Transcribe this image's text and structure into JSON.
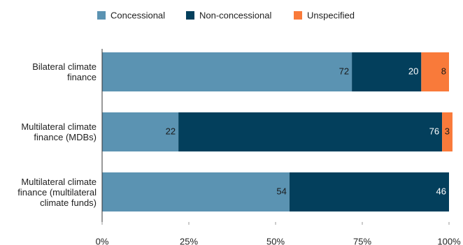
{
  "chart_data": {
    "type": "stacked-bar-horizontal",
    "categories": [
      "Bilateral climate finance",
      "Multilateral climate finance (MDBs)",
      "Multilateral climate finance (multilateral climate funds)"
    ],
    "series": [
      {
        "name": "Concessional",
        "color": "#5b93b2",
        "label_color": "#1a1a1a",
        "values": [
          72,
          22,
          54
        ]
      },
      {
        "name": "Non-concessional",
        "color": "#033f5c",
        "label_color": "#ffffff",
        "values": [
          20,
          76,
          46
        ]
      },
      {
        "name": "Unspecified",
        "color": "#f97a3a",
        "label_color": "#1a1a1a",
        "values": [
          8,
          3,
          null
        ]
      }
    ],
    "xlim": [
      0,
      100
    ],
    "xticks": [
      {
        "value": 0,
        "label": "0%"
      },
      {
        "value": 25,
        "label": "25%"
      },
      {
        "value": 50,
        "label": "50%"
      },
      {
        "value": 75,
        "label": "75%"
      },
      {
        "value": 100,
        "label": "100%"
      }
    ]
  }
}
